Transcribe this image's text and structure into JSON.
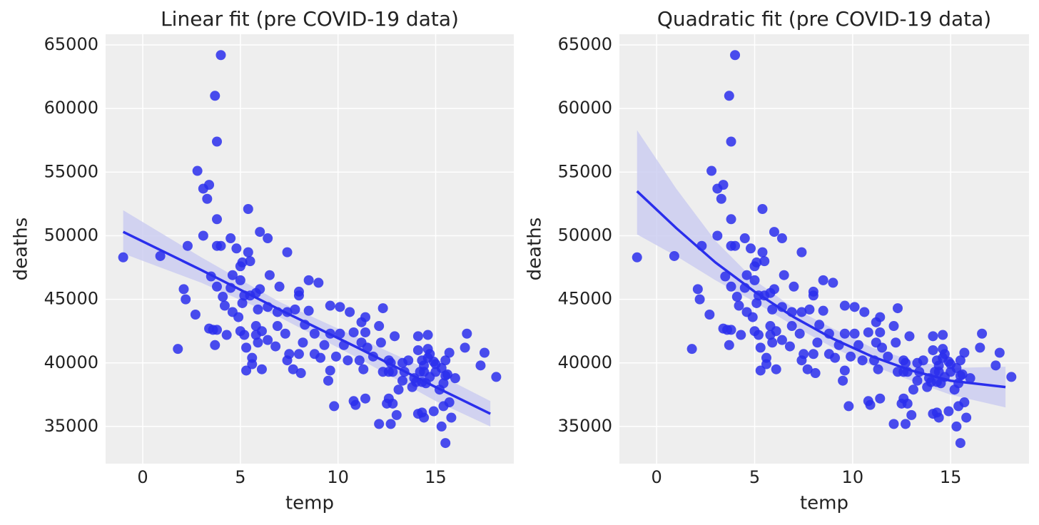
{
  "chart_data": [
    {
      "type": "scatter",
      "title": "Linear fit (pre COVID-19 data)",
      "x_label": "temp",
      "y_label": "deaths",
      "color": "#2a2eec",
      "xlim": [
        -1.9,
        19.0
      ],
      "ylim": [
        32080,
        65840
      ],
      "xticks": [
        0,
        5,
        10,
        15
      ],
      "yticks": [
        35000,
        40000,
        45000,
        50000,
        55000,
        60000,
        65000
      ],
      "grid": true,
      "x": [
        -1.0,
        0.9,
        1.8,
        2.1,
        2.2,
        2.3,
        2.7,
        2.8,
        3.1,
        3.1,
        3.3,
        3.4,
        3.4,
        3.5,
        3.6,
        3.7,
        3.7,
        3.8,
        3.8,
        3.8,
        3.8,
        3.8,
        4.0,
        4.0,
        4.1,
        4.2,
        4.3,
        4.5,
        4.5,
        4.6,
        4.6,
        4.8,
        4.9,
        5.0,
        5.0,
        5.0,
        5.1,
        5.1,
        5.2,
        5.2,
        5.3,
        5.3,
        5.4,
        5.4,
        5.5,
        5.5,
        5.6,
        5.6,
        5.8,
        5.8,
        5.8,
        5.9,
        5.9,
        6.0,
        6.0,
        6.1,
        6.1,
        6.4,
        6.4,
        6.4,
        6.5,
        6.8,
        6.9,
        6.9,
        7.0,
        7.3,
        7.4,
        7.4,
        7.4,
        7.5,
        7.7,
        7.8,
        8.0,
        8.0,
        8.0,
        8.1,
        8.2,
        8.3,
        8.5,
        8.5,
        8.8,
        8.8,
        9.0,
        9.1,
        9.3,
        9.5,
        9.6,
        9.6,
        9.6,
        9.8,
        9.9,
        10.1,
        10.1,
        10.3,
        10.5,
        10.6,
        10.8,
        10.8,
        10.9,
        11.1,
        11.2,
        11.2,
        11.3,
        11.4,
        11.4,
        11.4,
        11.5,
        11.8,
        12.1,
        12.1,
        12.2,
        12.3,
        12.3,
        12.5,
        12.6,
        12.6,
        12.6,
        12.7,
        12.7,
        12.8,
        12.8,
        12.9,
        13.0,
        13.1,
        13.3,
        13.3,
        13.4,
        13.6,
        13.8,
        13.9,
        14.0,
        14.1,
        14.1,
        14.1,
        14.2,
        14.3,
        14.3,
        14.3,
        14.4,
        14.4,
        14.4,
        14.5,
        14.6,
        14.6,
        14.6,
        14.7,
        14.7,
        14.9,
        14.9,
        15.0,
        15.0,
        15.2,
        15.3,
        15.3,
        15.4,
        15.4,
        15.5,
        15.5,
        15.5,
        15.6,
        15.7,
        15.7,
        15.8,
        16.0,
        16.5,
        16.6,
        17.3,
        17.5,
        18.1
      ],
      "values": [
        48300,
        48400,
        41100,
        45800,
        45000,
        49200,
        43800,
        55100,
        53700,
        50000,
        52900,
        54000,
        42700,
        46800,
        42600,
        61000,
        41400,
        57400,
        51300,
        46000,
        42600,
        49200,
        64200,
        49200,
        45200,
        44500,
        42200,
        49800,
        45900,
        46900,
        44000,
        49000,
        43600,
        42500,
        46500,
        47600,
        47900,
        44700,
        45300,
        42200,
        41200,
        39400,
        52100,
        48700,
        45300,
        48000,
        40400,
        39900,
        42200,
        42900,
        45500,
        44200,
        41600,
        50300,
        45800,
        42500,
        39500,
        44400,
        49800,
        41800,
        46900,
        41300,
        42900,
        44000,
        46000,
        42300,
        48700,
        44000,
        40200,
        40700,
        39500,
        44200,
        40700,
        45600,
        45300,
        39200,
        41600,
        43000,
        46500,
        44100,
        42300,
        40700,
        46300,
        40400,
        41400,
        38600,
        39400,
        44500,
        42300,
        36600,
        40500,
        42300,
        44400,
        41400,
        40200,
        44000,
        42400,
        37000,
        36700,
        40200,
        43200,
        41600,
        39500,
        43600,
        37200,
        42400,
        41200,
        40500,
        35200,
        42900,
        41600,
        44300,
        39300,
        36800,
        37200,
        40200,
        39300,
        35200,
        40000,
        36800,
        39300,
        42100,
        35900,
        37900,
        40000,
        38600,
        39300,
        40200,
        38100,
        38800,
        38500,
        36000,
        42100,
        41000,
        39300,
        36100,
        40200,
        38500,
        35700,
        39800,
        39300,
        38400,
        42200,
        40400,
        41100,
        40700,
        38900,
        40100,
        36200,
        39300,
        39900,
        37900,
        39600,
        35000,
        38400,
        36600,
        40200,
        33700,
        39000,
        39100,
        36900,
        40800,
        35700,
        38800,
        41200,
        42300,
        39800,
        40800,
        38900
      ],
      "fit": {
        "color": "#2a2eec",
        "band_color": "#c9cbf0",
        "x": [
          -1,
          3,
          7,
          11,
          15,
          17.8
        ],
        "values": [
          50300,
          47300,
          44200,
          41200,
          38100,
          36000
        ],
        "lower": [
          48600,
          46300,
          43600,
          40400,
          37000,
          35000
        ],
        "upper": [
          52000,
          48300,
          44800,
          42000,
          39200,
          37000
        ]
      }
    },
    {
      "type": "scatter",
      "title": "Quadratic fit (pre COVID-19 data)",
      "x_label": "temp",
      "y_label": "deaths",
      "color": "#2a2eec",
      "xlim": [
        -1.9,
        19.0
      ],
      "ylim": [
        32080,
        65840
      ],
      "xticks": [
        0,
        5,
        10,
        15
      ],
      "yticks": [
        35000,
        40000,
        45000,
        50000,
        55000,
        60000,
        65000
      ],
      "grid": true,
      "x": [
        -1.0,
        0.9,
        1.8,
        2.1,
        2.2,
        2.3,
        2.7,
        2.8,
        3.1,
        3.1,
        3.3,
        3.4,
        3.4,
        3.5,
        3.6,
        3.7,
        3.7,
        3.8,
        3.8,
        3.8,
        3.8,
        3.8,
        4.0,
        4.0,
        4.1,
        4.2,
        4.3,
        4.5,
        4.5,
        4.6,
        4.6,
        4.8,
        4.9,
        5.0,
        5.0,
        5.0,
        5.1,
        5.1,
        5.2,
        5.2,
        5.3,
        5.3,
        5.4,
        5.4,
        5.5,
        5.5,
        5.6,
        5.6,
        5.8,
        5.8,
        5.8,
        5.9,
        5.9,
        6.0,
        6.0,
        6.1,
        6.1,
        6.4,
        6.4,
        6.4,
        6.5,
        6.8,
        6.9,
        6.9,
        7.0,
        7.3,
        7.4,
        7.4,
        7.4,
        7.5,
        7.7,
        7.8,
        8.0,
        8.0,
        8.0,
        8.1,
        8.2,
        8.3,
        8.5,
        8.5,
        8.8,
        8.8,
        9.0,
        9.1,
        9.3,
        9.5,
        9.6,
        9.6,
        9.6,
        9.8,
        9.9,
        10.1,
        10.1,
        10.3,
        10.5,
        10.6,
        10.8,
        10.8,
        10.9,
        11.1,
        11.2,
        11.2,
        11.3,
        11.4,
        11.4,
        11.4,
        11.5,
        11.8,
        12.1,
        12.1,
        12.2,
        12.3,
        12.3,
        12.5,
        12.6,
        12.6,
        12.6,
        12.7,
        12.7,
        12.8,
        12.8,
        12.9,
        13.0,
        13.1,
        13.3,
        13.3,
        13.4,
        13.6,
        13.8,
        13.9,
        14.0,
        14.1,
        14.1,
        14.1,
        14.2,
        14.3,
        14.3,
        14.3,
        14.4,
        14.4,
        14.4,
        14.5,
        14.6,
        14.6,
        14.6,
        14.7,
        14.7,
        14.9,
        14.9,
        15.0,
        15.0,
        15.2,
        15.3,
        15.3,
        15.4,
        15.4,
        15.5,
        15.5,
        15.5,
        15.6,
        15.7,
        15.7,
        15.8,
        16.0,
        16.5,
        16.6,
        17.3,
        17.5,
        18.1
      ],
      "values": [
        48300,
        48400,
        41100,
        45800,
        45000,
        49200,
        43800,
        55100,
        53700,
        50000,
        52900,
        54000,
        42700,
        46800,
        42600,
        61000,
        41400,
        57400,
        51300,
        46000,
        42600,
        49200,
        64200,
        49200,
        45200,
        44500,
        42200,
        49800,
        45900,
        46900,
        44000,
        49000,
        43600,
        42500,
        46500,
        47600,
        47900,
        44700,
        45300,
        42200,
        41200,
        39400,
        52100,
        48700,
        45300,
        48000,
        40400,
        39900,
        42200,
        42900,
        45500,
        44200,
        41600,
        50300,
        45800,
        42500,
        39500,
        44400,
        49800,
        41800,
        46900,
        41300,
        42900,
        44000,
        46000,
        42300,
        48700,
        44000,
        40200,
        40700,
        39500,
        44200,
        40700,
        45600,
        45300,
        39200,
        41600,
        43000,
        46500,
        44100,
        42300,
        40700,
        46300,
        40400,
        41400,
        38600,
        39400,
        44500,
        42300,
        36600,
        40500,
        42300,
        44400,
        41400,
        40200,
        44000,
        42400,
        37000,
        36700,
        40200,
        43200,
        41600,
        39500,
        43600,
        37200,
        42400,
        41200,
        40500,
        35200,
        42900,
        41600,
        44300,
        39300,
        36800,
        37200,
        40200,
        39300,
        35200,
        40000,
        36800,
        39300,
        42100,
        35900,
        37900,
        40000,
        38600,
        39300,
        40200,
        38100,
        38800,
        38500,
        36000,
        42100,
        41000,
        39300,
        36100,
        40200,
        38500,
        35700,
        39800,
        39300,
        38400,
        42200,
        40400,
        41100,
        40700,
        38900,
        40100,
        36200,
        39300,
        39900,
        37900,
        39600,
        35000,
        38400,
        36600,
        40200,
        33700,
        39000,
        39100,
        36900,
        40800,
        35700,
        38800,
        41200,
        42300,
        39800,
        40800,
        38900
      ],
      "fit": {
        "color": "#2a2eec",
        "band_color": "#c9cbf0",
        "x": [
          -1,
          1,
          3,
          5,
          7,
          9,
          11,
          13,
          15,
          17.8
        ],
        "values": [
          53500,
          50600,
          47900,
          45600,
          43600,
          41900,
          40500,
          39400,
          38600,
          38100
        ],
        "lower": [
          50100,
          48400,
          46500,
          44800,
          42900,
          41200,
          39800,
          38600,
          37500,
          36500
        ],
        "upper": [
          58300,
          53700,
          49600,
          46500,
          44300,
          42700,
          41200,
          40200,
          39600,
          39700
        ]
      }
    }
  ]
}
